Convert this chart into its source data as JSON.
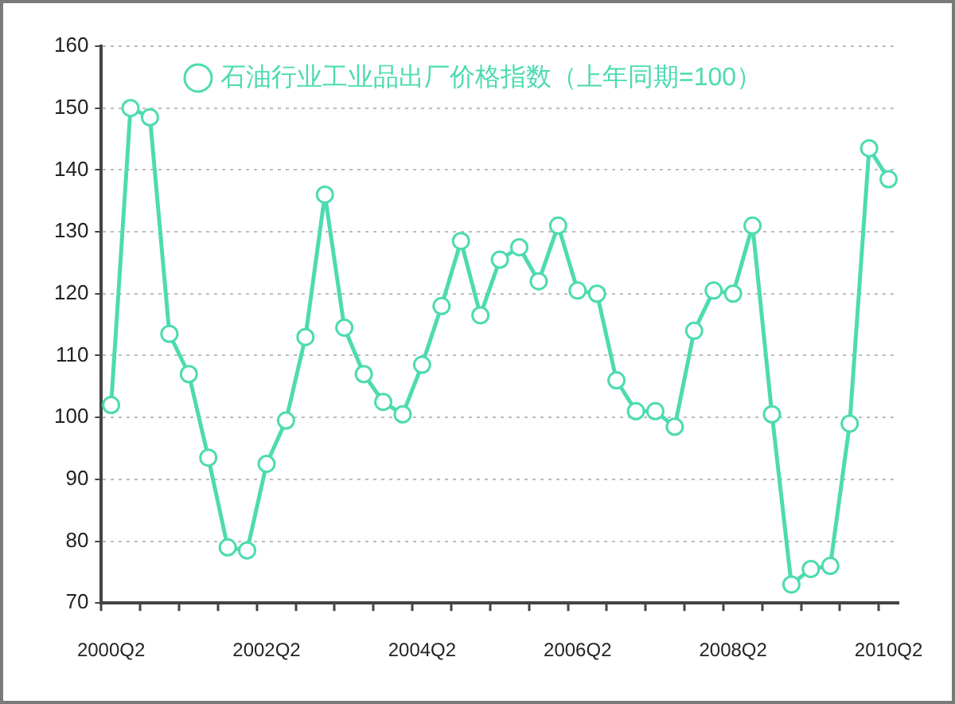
{
  "chart_data": {
    "type": "line",
    "categories": [
      "2000Q2",
      null,
      null,
      null,
      null,
      null,
      null,
      null,
      "2002Q2",
      null,
      null,
      null,
      null,
      null,
      null,
      null,
      "2004Q2",
      null,
      null,
      null,
      null,
      null,
      null,
      null,
      "2006Q2",
      null,
      null,
      null,
      null,
      null,
      null,
      null,
      "2008Q2",
      null,
      null,
      null,
      null,
      null,
      null,
      null,
      "2010Q2"
    ],
    "series": [
      {
        "name": "石油行业工业品出厂价格指数（上年同期=100）",
        "color": "#4ddbb0",
        "values": [
          102,
          150,
          148.5,
          113.5,
          107,
          93.5,
          79,
          78.5,
          92.5,
          99.5,
          113,
          136,
          114.5,
          107,
          102.5,
          100.5,
          108.5,
          118,
          128.5,
          116.5,
          125.5,
          127.5,
          122,
          131,
          120.5,
          120,
          106,
          101,
          101,
          98.5,
          114,
          120.5,
          120,
          131,
          100.5,
          73,
          75.5,
          76,
          99,
          143.5,
          138.5
        ]
      }
    ],
    "ylim": [
      70,
      160
    ],
    "yticks": [
      70,
      80,
      90,
      100,
      110,
      120,
      130,
      140,
      150,
      160
    ],
    "grid": "y",
    "legend": "top",
    "marker": "circle",
    "line_style": "solid"
  }
}
